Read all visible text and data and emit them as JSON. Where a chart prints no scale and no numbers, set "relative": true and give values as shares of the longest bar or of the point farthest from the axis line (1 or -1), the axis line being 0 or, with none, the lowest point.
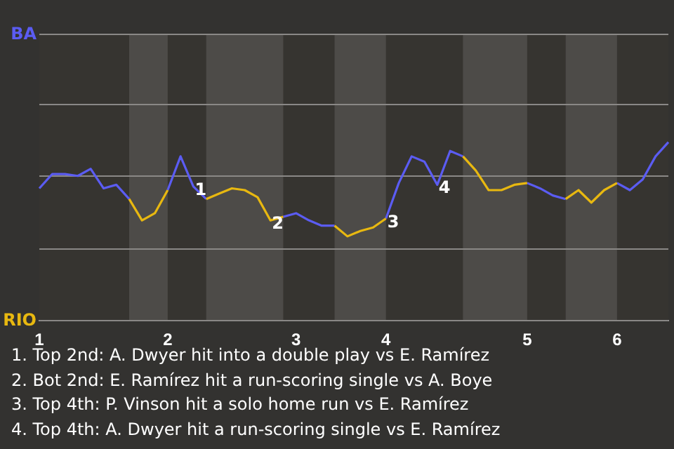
{
  "chart_data": {
    "type": "line",
    "relative": true,
    "marker": "none",
    "categories": [
      "1",
      null,
      null,
      null,
      null,
      null,
      null,
      null,
      null,
      null,
      "2",
      null,
      null,
      null,
      null,
      null,
      null,
      null,
      null,
      null,
      "3",
      null,
      null,
      null,
      null,
      null,
      null,
      "4",
      null,
      null,
      null,
      null,
      null,
      null,
      null,
      null,
      null,
      null,
      "5",
      null,
      null,
      null,
      null,
      null,
      null,
      "6",
      null,
      null,
      null,
      null
    ],
    "series": [
      {
        "color": "#5b5cf2",
        "values": [
          0.74,
          0.82,
          0.82,
          0.81,
          0.85,
          0.74,
          0.76,
          0.68,
          null,
          null,
          0.73,
          0.92,
          0.75,
          0.68,
          null,
          null,
          null,
          null,
          null,
          0.58,
          0.6,
          0.56,
          0.53,
          0.53,
          null,
          null,
          null,
          0.57,
          0.77,
          0.92,
          0.89,
          0.76,
          0.95,
          0.92,
          null,
          null,
          null,
          null,
          0.77,
          0.74,
          0.7,
          0.68,
          null,
          null,
          null,
          0.77,
          0.73,
          0.79,
          0.92,
          1
        ]
      },
      {
        "color": "#e8b810",
        "values": [
          null,
          null,
          null,
          null,
          null,
          null,
          null,
          0.68,
          0.56,
          0.6,
          0.73,
          null,
          null,
          0.68,
          0.71,
          0.74,
          0.73,
          0.69,
          0.56,
          0.58,
          null,
          null,
          null,
          0.53,
          0.47,
          0.5,
          0.52,
          0.57,
          null,
          null,
          null,
          null,
          null,
          0.92,
          0.84,
          0.73,
          0.73,
          0.76,
          0.77,
          null,
          null,
          0.68,
          0.73,
          0.66,
          0.73,
          0.77,
          null,
          null,
          null,
          null
        ]
      }
    ],
    "ref_lines": [
      {
        "axis": "y",
        "value": 0,
        "label": "RIO"
      },
      {
        "axis": "y",
        "value": 0.4,
        "label": null
      },
      {
        "axis": "y",
        "value": 0.81,
        "label": null
      },
      {
        "axis": "y",
        "value": 1.21,
        "label": null
      },
      {
        "axis": "y",
        "value": 1.61,
        "label": "BA"
      }
    ],
    "annotations": [
      {
        "text": "1",
        "y": 0.75
      },
      {
        "text": "2",
        "y": 0.56
      },
      {
        "text": "3",
        "y": 0.57
      },
      {
        "text": "4",
        "y": 0.76
      },
      "1. Top 2nd: A. Dwyer hit into a double play vs E. Ramírez",
      "2. Bot 2nd: E. Ramírez hit a run-scoring single vs A. Boye",
      "3. Top 4th: P. Vinson hit a solo home run vs E. Ramírez",
      "4. Top 4th: A. Dwyer hit a run-scoring single vs E. Ramírez"
    ]
  }
}
